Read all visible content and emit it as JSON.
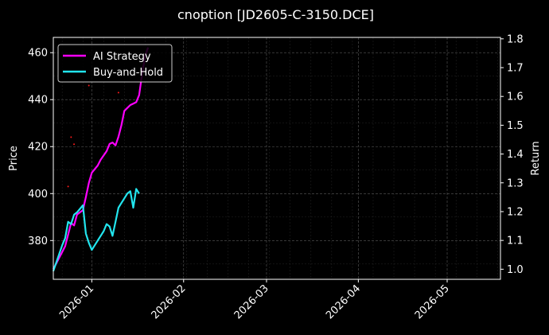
{
  "chart_data": {
    "type": "line",
    "title": "cnoption [JD2605-C-3150.DCE]",
    "xlabel": "",
    "ylabel": "Price",
    "y2label": "Return",
    "x_axis": {
      "type": "date",
      "range": [
        "2025-12-19",
        "2026-05-19"
      ],
      "ticks": [
        "2026-01",
        "2026-02",
        "2026-03",
        "2026-04",
        "2026-05"
      ],
      "tick_dates": [
        "2026-01-01",
        "2026-02-01",
        "2026-03-01",
        "2026-04-01",
        "2026-05-01"
      ]
    },
    "y_axis": {
      "range": [
        363.5,
        466.5
      ],
      "ticks": [
        380,
        400,
        420,
        440,
        460
      ]
    },
    "y2_axis": {
      "range": [
        0.965,
        1.805
      ],
      "ticks": [
        "1.0",
        "1.1",
        "1.2",
        "1.3",
        "1.4",
        "1.5",
        "1.6",
        "1.7",
        "1.8"
      ]
    },
    "grid": true,
    "legend": {
      "placement": "top-left"
    },
    "series": [
      {
        "name": "AI Strategy",
        "axis": "return",
        "color": "#ff00ff",
        "points": [
          [
            "2025-12-19",
            1.0
          ],
          [
            "2025-12-22",
            1.06
          ],
          [
            "2025-12-23",
            1.08
          ],
          [
            "2025-12-24",
            1.12
          ],
          [
            "2025-12-25",
            1.16
          ],
          [
            "2025-12-26",
            1.152
          ],
          [
            "2025-12-27",
            1.19
          ],
          [
            "2025-12-29",
            1.205
          ],
          [
            "2025-12-30",
            1.25
          ],
          [
            "2025-12-31",
            1.3
          ],
          [
            "2026-01-01",
            1.335
          ],
          [
            "2026-01-03",
            1.36
          ],
          [
            "2026-01-04",
            1.38
          ],
          [
            "2026-01-06",
            1.41
          ],
          [
            "2026-01-07",
            1.435
          ],
          [
            "2026-01-08",
            1.44
          ],
          [
            "2026-01-09",
            1.43
          ],
          [
            "2026-01-10",
            1.46
          ],
          [
            "2026-01-11",
            1.5
          ],
          [
            "2026-01-12",
            1.55
          ],
          [
            "2026-01-13",
            1.56
          ],
          [
            "2026-01-14",
            1.57
          ],
          [
            "2026-01-15",
            1.575
          ],
          [
            "2026-01-16",
            1.58
          ],
          [
            "2026-01-17",
            1.605
          ],
          [
            "2026-01-18",
            1.68
          ],
          [
            "2026-01-19",
            1.74
          ],
          [
            "2026-01-20",
            1.77
          ]
        ]
      },
      {
        "name": "Buy-and-Hold",
        "axis": "price",
        "color": "#22e5ee",
        "points": [
          [
            "2025-12-19",
            367
          ],
          [
            "2025-12-22",
            378
          ],
          [
            "2025-12-23",
            381
          ],
          [
            "2025-12-24",
            388
          ],
          [
            "2025-12-25",
            387
          ],
          [
            "2025-12-26",
            391
          ],
          [
            "2025-12-27",
            392
          ],
          [
            "2025-12-29",
            395
          ],
          [
            "2025-12-30",
            383
          ],
          [
            "2025-12-31",
            379
          ],
          [
            "2026-01-01",
            376
          ],
          [
            "2026-01-03",
            380
          ],
          [
            "2026-01-05",
            384
          ],
          [
            "2026-01-06",
            387
          ],
          [
            "2026-01-07",
            386
          ],
          [
            "2026-01-08",
            382
          ],
          [
            "2026-01-09",
            388
          ],
          [
            "2026-01-10",
            394
          ],
          [
            "2026-01-11",
            396
          ],
          [
            "2026-01-12",
            398
          ],
          [
            "2026-01-13",
            400
          ],
          [
            "2026-01-14",
            401
          ],
          [
            "2026-01-15",
            394
          ],
          [
            "2026-01-16",
            402
          ],
          [
            "2026-01-17",
            400
          ]
        ]
      }
    ],
    "markers": [
      {
        "date": "2025-12-24",
        "price": 403,
        "color": "#ff1a1a"
      },
      {
        "date": "2025-12-25",
        "price": 424,
        "color": "#ff1a1a"
      },
      {
        "date": "2025-12-26",
        "price": 421,
        "color": "#ff1a1a"
      },
      {
        "date": "2025-12-31",
        "price": 446,
        "color": "#ff1a1a"
      },
      {
        "date": "2026-01-10",
        "price": 443,
        "color": "#ff1a1a"
      }
    ]
  }
}
